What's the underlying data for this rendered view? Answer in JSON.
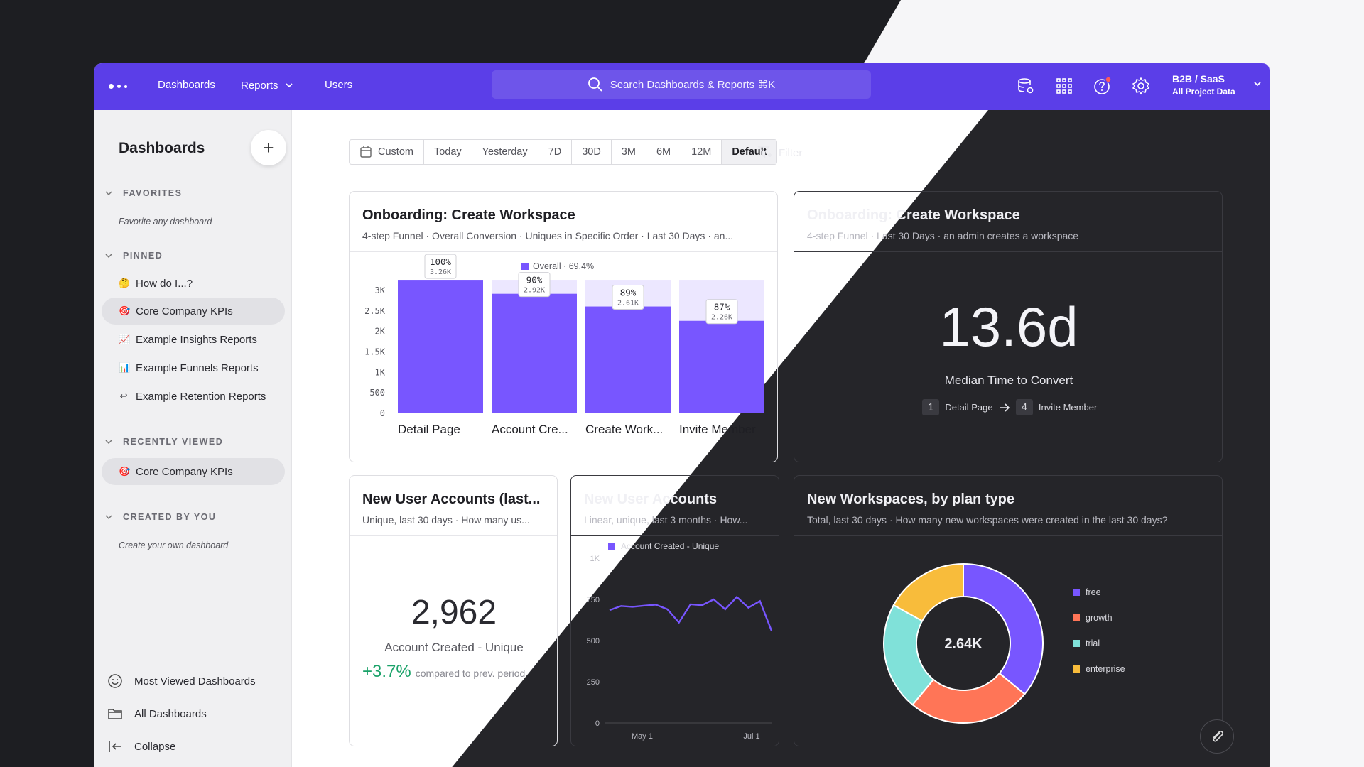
{
  "nav": {
    "dashboards": "Dashboards",
    "reports": "Reports",
    "users": "Users",
    "search_placeholder": "Search Dashboards & Reports ⌘K",
    "project_name": "B2B / SaaS",
    "project_scope": "All Project Data"
  },
  "sidebar": {
    "title": "Dashboards",
    "add_icon": "plus-icon",
    "sections": {
      "favorites": "FAVORITES",
      "favorites_hint": "Favorite any dashboard",
      "pinned": "PINNED",
      "recently_viewed": "RECENTLY VIEWED",
      "created_by_you": "CREATED BY YOU",
      "created_hint": "Create your own dashboard"
    },
    "pinned_items": [
      {
        "emoji": "🤔",
        "label": "How do I...?"
      },
      {
        "emoji": "🎯",
        "label": "Core Company KPIs"
      },
      {
        "emoji": "📈",
        "label": "Example Insights Reports"
      },
      {
        "emoji": "📊",
        "label": "Example Funnels Reports"
      },
      {
        "emoji": "↩",
        "label": "Example Retention Reports"
      }
    ],
    "recent_items": [
      {
        "emoji": "🎯",
        "label": "Core Company KPIs"
      }
    ],
    "footer": {
      "most_viewed": "Most Viewed Dashboards",
      "all": "All Dashboards",
      "collapse": "Collapse"
    }
  },
  "date_range": {
    "options": [
      "Custom",
      "Today",
      "Yesterday",
      "7D",
      "30D",
      "3M",
      "6M",
      "12M",
      "Default"
    ],
    "selected": "Default"
  },
  "filter_label": "Filter",
  "cards": {
    "funnel": {
      "title": "Onboarding: Create Workspace",
      "subtitle": "4-step Funnel · Overall Conversion · Uniques in Specific Order · Last 30 Days · an..."
    },
    "time_to_convert": {
      "title": "Onboarding: Create Workspace",
      "subtitle": "4-step Funnel · Last 30 Days · an admin creates a workspace",
      "value": "13.6d",
      "label": "Median Time to Convert",
      "from_step": "1",
      "from_label": "Detail Page",
      "to_step": "4",
      "to_label": "Invite Member"
    },
    "new_accounts_metric": {
      "title": "New User Accounts (last...",
      "subtitle": "Unique, last 30 days · How many us...",
      "value": "2,962",
      "label": "Account Created - Unique",
      "change": "+3.7%",
      "change_note": "compared to prev. period"
    },
    "new_accounts_line": {
      "title": "New User Accounts",
      "subtitle": "Linear, unique, last 3 months · How..."
    },
    "workspaces_pie": {
      "title": "New Workspaces, by plan type",
      "subtitle": "Total, last 30 days · How many new workspaces were created in the last 30 days?",
      "center_label": "2.64K"
    }
  },
  "chart_data": [
    {
      "type": "bar",
      "legend": "Overall · 69.4%",
      "categories": [
        "Detail Page",
        "Account Cre...",
        "Create Work...",
        "Invite Member"
      ],
      "values": [
        3260,
        2920,
        2610,
        2260
      ],
      "percent_labels": [
        "100%",
        "90%",
        "89%",
        "87%"
      ],
      "value_labels": [
        "3.26K",
        "2.92K",
        "2.61K",
        "2.26K"
      ],
      "yticks": [
        "0",
        "500",
        "1K",
        "1.5K",
        "2K",
        "2.5K",
        "3K"
      ],
      "ylim": [
        0,
        3400
      ],
      "color": "#7856ff"
    },
    {
      "type": "line",
      "series": [
        {
          "name": "Account Created - Unique",
          "values": [
            685,
            710,
            705,
            712,
            718,
            690,
            610,
            720,
            715,
            750,
            690,
            765,
            700,
            740,
            560
          ]
        }
      ],
      "xticks": [
        "May 1",
        "Jul 1"
      ],
      "yticks": [
        "0",
        "250",
        "500",
        "750",
        "1K"
      ],
      "ylim": [
        0,
        1000
      ],
      "color": "#7856ff"
    },
    {
      "type": "pie",
      "total_label": "2.64K",
      "slices": [
        {
          "name": "free",
          "value": 0.36,
          "color": "#7856ff"
        },
        {
          "name": "growth",
          "value": 0.25,
          "color": "#ff7557"
        },
        {
          "name": "trial",
          "value": 0.22,
          "color": "#80e1d9"
        },
        {
          "name": "enterprise",
          "value": 0.17,
          "color": "#f8bc3b"
        }
      ]
    }
  ]
}
